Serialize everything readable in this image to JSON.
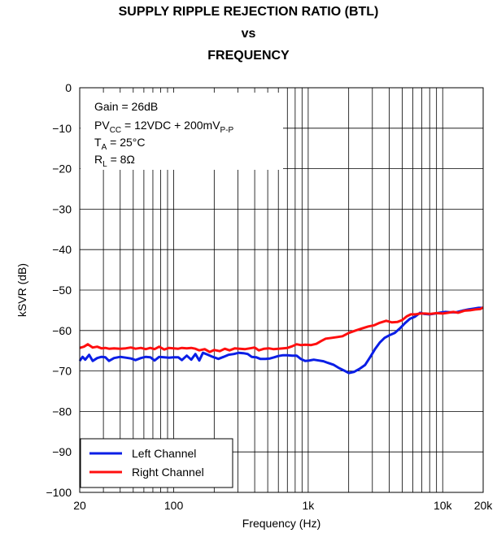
{
  "chart_data": {
    "type": "line",
    "title_lines": [
      "SUPPLY RIPPLE REJECTION RATIO (BTL)",
      "vs",
      "FREQUENCY"
    ],
    "xlabel": "Frequency (Hz)",
    "ylabel": "kSVR (dB)",
    "x_scale": "log",
    "xlim": [
      20,
      20000
    ],
    "ylim": [
      -100,
      0
    ],
    "x_ticks": [
      {
        "value": 20,
        "label": "20"
      },
      {
        "value": 100,
        "label": "100"
      },
      {
        "value": 1000,
        "label": "1k"
      },
      {
        "value": 10000,
        "label": "10k"
      },
      {
        "value": 20000,
        "label": "20k"
      }
    ],
    "y_ticks": [
      {
        "value": 0,
        "label": "0"
      },
      {
        "value": -10,
        "label": "−10"
      },
      {
        "value": -20,
        "label": "−20"
      },
      {
        "value": -30,
        "label": "−30"
      },
      {
        "value": -40,
        "label": "−40"
      },
      {
        "value": -50,
        "label": "−50"
      },
      {
        "value": -60,
        "label": "−60"
      },
      {
        "value": -70,
        "label": "−70"
      },
      {
        "value": -80,
        "label": "−80"
      },
      {
        "value": -90,
        "label": "−90"
      },
      {
        "value": -100,
        "label": "−100"
      }
    ],
    "grid": true,
    "annotations": {
      "gain": "Gain = 26dB",
      "pvcc_main": "PV",
      "pvcc_sub": "CC",
      "pvcc_value": " = 12VDC + 200mV",
      "pvcc_sub2": "P-P",
      "ta_main": "T",
      "ta_sub": "A",
      "ta_value": " = 25°C",
      "rl_main": "R",
      "rl_sub": "L",
      "rl_value": " = 8Ω"
    },
    "legend_position": "bottom-left",
    "series": [
      {
        "name": "Left Channel",
        "color": "#0a1ee6",
        "points": [
          [
            20,
            -67.5
          ],
          [
            21,
            -66.5
          ],
          [
            22,
            -67.2
          ],
          [
            23.5,
            -66
          ],
          [
            25,
            -67.5
          ],
          [
            27,
            -66.8
          ],
          [
            29,
            -66.5
          ],
          [
            31,
            -66.6
          ],
          [
            33,
            -67.5
          ],
          [
            36,
            -66.8
          ],
          [
            40,
            -66.5
          ],
          [
            44,
            -66.7
          ],
          [
            48,
            -66.9
          ],
          [
            52,
            -67.3
          ],
          [
            57,
            -66.8
          ],
          [
            62,
            -66.5
          ],
          [
            67,
            -66.6
          ],
          [
            72,
            -67.4
          ],
          [
            78,
            -66.5
          ],
          [
            85,
            -66.6
          ],
          [
            92,
            -66.7
          ],
          [
            100,
            -66.6
          ],
          [
            108,
            -66.6
          ],
          [
            115,
            -67.3
          ],
          [
            125,
            -66.2
          ],
          [
            135,
            -67.2
          ],
          [
            145,
            -65.8
          ],
          [
            155,
            -67.4
          ],
          [
            165,
            -65.5
          ],
          [
            180,
            -66
          ],
          [
            195,
            -66.5
          ],
          [
            215,
            -67
          ],
          [
            235,
            -66.5
          ],
          [
            255,
            -66
          ],
          [
            280,
            -65.8
          ],
          [
            305,
            -65.5
          ],
          [
            330,
            -65.6
          ],
          [
            355,
            -65.8
          ],
          [
            380,
            -66.5
          ],
          [
            410,
            -66.6
          ],
          [
            440,
            -67
          ],
          [
            480,
            -67
          ],
          [
            520,
            -66.9
          ],
          [
            560,
            -66.6
          ],
          [
            600,
            -66.3
          ],
          [
            650,
            -66.1
          ],
          [
            700,
            -66.1
          ],
          [
            760,
            -66.2
          ],
          [
            820,
            -66.2
          ],
          [
            880,
            -67
          ],
          [
            950,
            -67.5
          ],
          [
            1020,
            -67.4
          ],
          [
            1100,
            -67.2
          ],
          [
            1200,
            -67.4
          ],
          [
            1300,
            -67.6
          ],
          [
            1400,
            -68
          ],
          [
            1550,
            -68.5
          ],
          [
            1700,
            -69.3
          ],
          [
            1850,
            -69.9
          ],
          [
            2000,
            -70.5
          ],
          [
            2200,
            -70.2
          ],
          [
            2400,
            -69.5
          ],
          [
            2650,
            -68.5
          ],
          [
            2900,
            -66.5
          ],
          [
            3150,
            -64.5
          ],
          [
            3400,
            -63
          ],
          [
            3700,
            -61.8
          ],
          [
            4000,
            -61.2
          ],
          [
            4400,
            -60.6
          ],
          [
            4800,
            -59.5
          ],
          [
            5200,
            -58.3
          ],
          [
            5700,
            -57.1
          ],
          [
            6200,
            -56.6
          ],
          [
            6800,
            -55.6
          ],
          [
            7300,
            -55.9
          ],
          [
            8000,
            -56
          ],
          [
            8800,
            -55.8
          ],
          [
            9500,
            -55.6
          ],
          [
            10500,
            -55.4
          ],
          [
            11500,
            -55.5
          ],
          [
            12500,
            -55.5
          ],
          [
            14000,
            -55.1
          ],
          [
            15500,
            -54.8
          ],
          [
            17000,
            -54.6
          ],
          [
            18500,
            -54.4
          ],
          [
            20000,
            -54.4
          ]
        ]
      },
      {
        "name": "Right Channel",
        "color": "#ff0f0f",
        "points": [
          [
            20,
            -64.3
          ],
          [
            21.5,
            -64
          ],
          [
            23,
            -63.4
          ],
          [
            25,
            -64.2
          ],
          [
            27,
            -64
          ],
          [
            29,
            -64.4
          ],
          [
            31,
            -64.3
          ],
          [
            33,
            -64.5
          ],
          [
            36,
            -64.4
          ],
          [
            40,
            -64.5
          ],
          [
            44,
            -64.4
          ],
          [
            48,
            -64.2
          ],
          [
            52,
            -64.5
          ],
          [
            57,
            -64.3
          ],
          [
            62,
            -64.6
          ],
          [
            67,
            -64.3
          ],
          [
            72,
            -64.6
          ],
          [
            78,
            -64
          ],
          [
            85,
            -64.7
          ],
          [
            92,
            -64.3
          ],
          [
            100,
            -64.4
          ],
          [
            108,
            -64.5
          ],
          [
            115,
            -64.3
          ],
          [
            125,
            -64.4
          ],
          [
            135,
            -64.3
          ],
          [
            145,
            -64.5
          ],
          [
            155,
            -64.9
          ],
          [
            170,
            -64.6
          ],
          [
            185,
            -65.3
          ],
          [
            200,
            -64.8
          ],
          [
            220,
            -65.1
          ],
          [
            240,
            -64.5
          ],
          [
            260,
            -64.9
          ],
          [
            285,
            -64.4
          ],
          [
            310,
            -64.5
          ],
          [
            340,
            -64.6
          ],
          [
            370,
            -64.4
          ],
          [
            400,
            -64.2
          ],
          [
            430,
            -64.9
          ],
          [
            470,
            -64.5
          ],
          [
            510,
            -64.4
          ],
          [
            550,
            -64.6
          ],
          [
            600,
            -64.5
          ],
          [
            650,
            -64.4
          ],
          [
            700,
            -64.3
          ],
          [
            760,
            -63.9
          ],
          [
            820,
            -63.4
          ],
          [
            880,
            -63.6
          ],
          [
            950,
            -63.5
          ],
          [
            1050,
            -63.6
          ],
          [
            1150,
            -63.3
          ],
          [
            1250,
            -62.6
          ],
          [
            1350,
            -62
          ],
          [
            1500,
            -61.8
          ],
          [
            1650,
            -61.6
          ],
          [
            1800,
            -61.4
          ],
          [
            2000,
            -60.6
          ],
          [
            2250,
            -60
          ],
          [
            2500,
            -59.5
          ],
          [
            2800,
            -59
          ],
          [
            3100,
            -58.7
          ],
          [
            3400,
            -58.1
          ],
          [
            3800,
            -57.6
          ],
          [
            4200,
            -58
          ],
          [
            4600,
            -57.9
          ],
          [
            5000,
            -57.4
          ],
          [
            5400,
            -56.5
          ],
          [
            5800,
            -56
          ],
          [
            6300,
            -56
          ],
          [
            6800,
            -55.8
          ],
          [
            7400,
            -55.8
          ],
          [
            8100,
            -55.9
          ],
          [
            9000,
            -55.7
          ],
          [
            10000,
            -55.8
          ],
          [
            11000,
            -55.6
          ],
          [
            12000,
            -55.4
          ],
          [
            13000,
            -55.6
          ],
          [
            14500,
            -55.1
          ],
          [
            16000,
            -55
          ],
          [
            17500,
            -54.8
          ],
          [
            19000,
            -54.7
          ],
          [
            20000,
            -54.3
          ]
        ]
      }
    ]
  }
}
